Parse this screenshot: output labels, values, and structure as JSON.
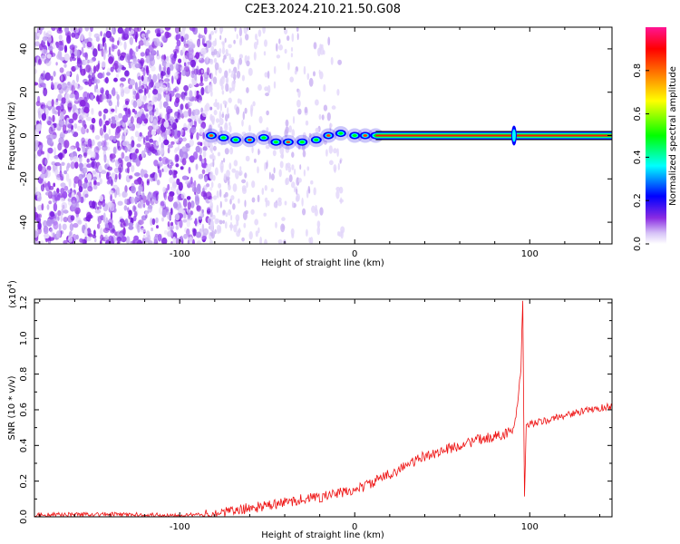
{
  "title": "C2E3.2024.210.21.50.G08",
  "chart_data": [
    {
      "type": "heatmap",
      "xlabel": "Height of straight line (km)",
      "ylabel": "Frequency (Hz)",
      "xlim": [
        -183,
        147
      ],
      "ylim": [
        -50,
        50
      ],
      "xticks": [
        -100,
        0,
        100
      ],
      "yticks": [
        -40,
        -20,
        0,
        20,
        40
      ],
      "colorbar": {
        "label": "Normalized spectral amplitude",
        "ticks": [
          "0.0",
          "0.2",
          "0.4",
          "0.6",
          "0.8"
        ],
        "range": [
          0,
          1
        ],
        "colors": [
          "#ffffff",
          "#d6c2f7",
          "#8a2be2",
          "#0000ff",
          "#00ffff",
          "#00ff00",
          "#ffff00",
          "#ff8000",
          "#ff0000",
          "#ff0080"
        ]
      },
      "features": {
        "noise_region_x": [
          -183,
          -82
        ],
        "transition_x": [
          -82,
          12
        ],
        "tone_x": [
          12,
          147
        ],
        "tone_frequency_hz": 0,
        "spike_x": 91
      }
    },
    {
      "type": "line",
      "xlabel": "Height of straight line (km)",
      "ylabel": "SNR (10 * v/v)",
      "yscale_label": "(x10",
      "yscale_exp": "4",
      "yscale_close": ")",
      "xlim": [
        -183,
        147
      ],
      "ylim": [
        0,
        1.22
      ],
      "xticks": [
        -100,
        0,
        100
      ],
      "yticks": [
        "0.0",
        "0.2",
        "0.4",
        "0.6",
        "0.8",
        "1.0",
        "1.2"
      ],
      "color": "#ee1111",
      "series": [
        {
          "x": [
            -183,
            -150,
            -110,
            -85,
            -70,
            -60,
            -50,
            -40,
            -30,
            -20,
            -10,
            0,
            10,
            20,
            30,
            40,
            50,
            60,
            70,
            80,
            90,
            93,
            95,
            96,
            97,
            98,
            100,
            110,
            120,
            130,
            140,
            147
          ],
          "y": [
            0.01,
            0.015,
            0.01,
            0.01,
            0.03,
            0.05,
            0.06,
            0.08,
            0.1,
            0.11,
            0.13,
            0.15,
            0.19,
            0.24,
            0.29,
            0.34,
            0.37,
            0.4,
            0.43,
            0.45,
            0.48,
            0.6,
            0.84,
            1.22,
            0.1,
            0.5,
            0.52,
            0.54,
            0.57,
            0.59,
            0.61,
            0.62
          ]
        }
      ]
    }
  ]
}
